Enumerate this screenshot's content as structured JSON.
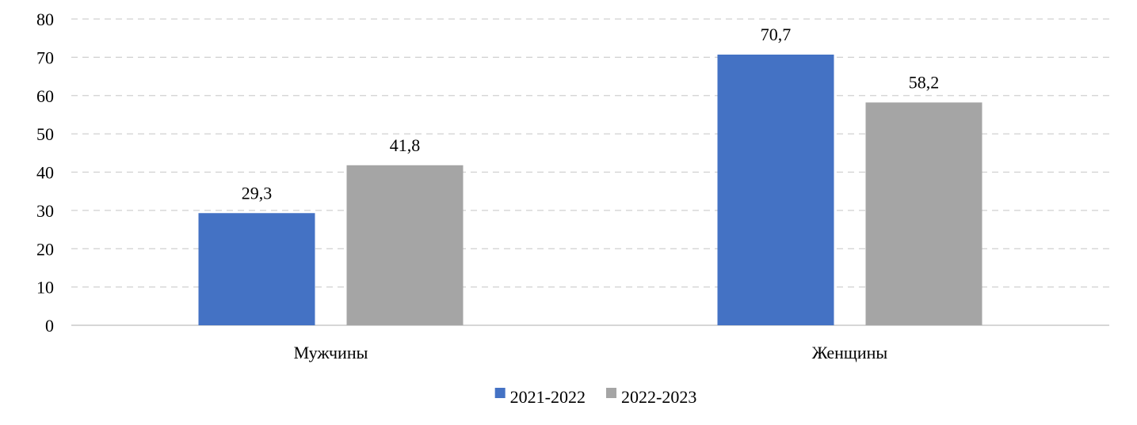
{
  "chart_data": {
    "type": "bar",
    "categories": [
      "Мужчины",
      "Женщины"
    ],
    "series": [
      {
        "name": "2021-2022",
        "values": [
          29.3,
          70.7
        ],
        "color": "#4472c4"
      },
      {
        "name": "2022-2023",
        "values": [
          41.8,
          58.2
        ],
        "color": "#a5a5a5"
      }
    ],
    "data_labels": [
      [
        "29,3",
        "70,7"
      ],
      [
        "41,8",
        "58,2"
      ]
    ],
    "title": "",
    "xlabel": "",
    "ylabel": "",
    "ylim": [
      0,
      80
    ],
    "yticks": [
      0,
      10,
      20,
      30,
      40,
      50,
      60,
      70,
      80
    ],
    "grid": true,
    "legend_position": "bottom"
  }
}
